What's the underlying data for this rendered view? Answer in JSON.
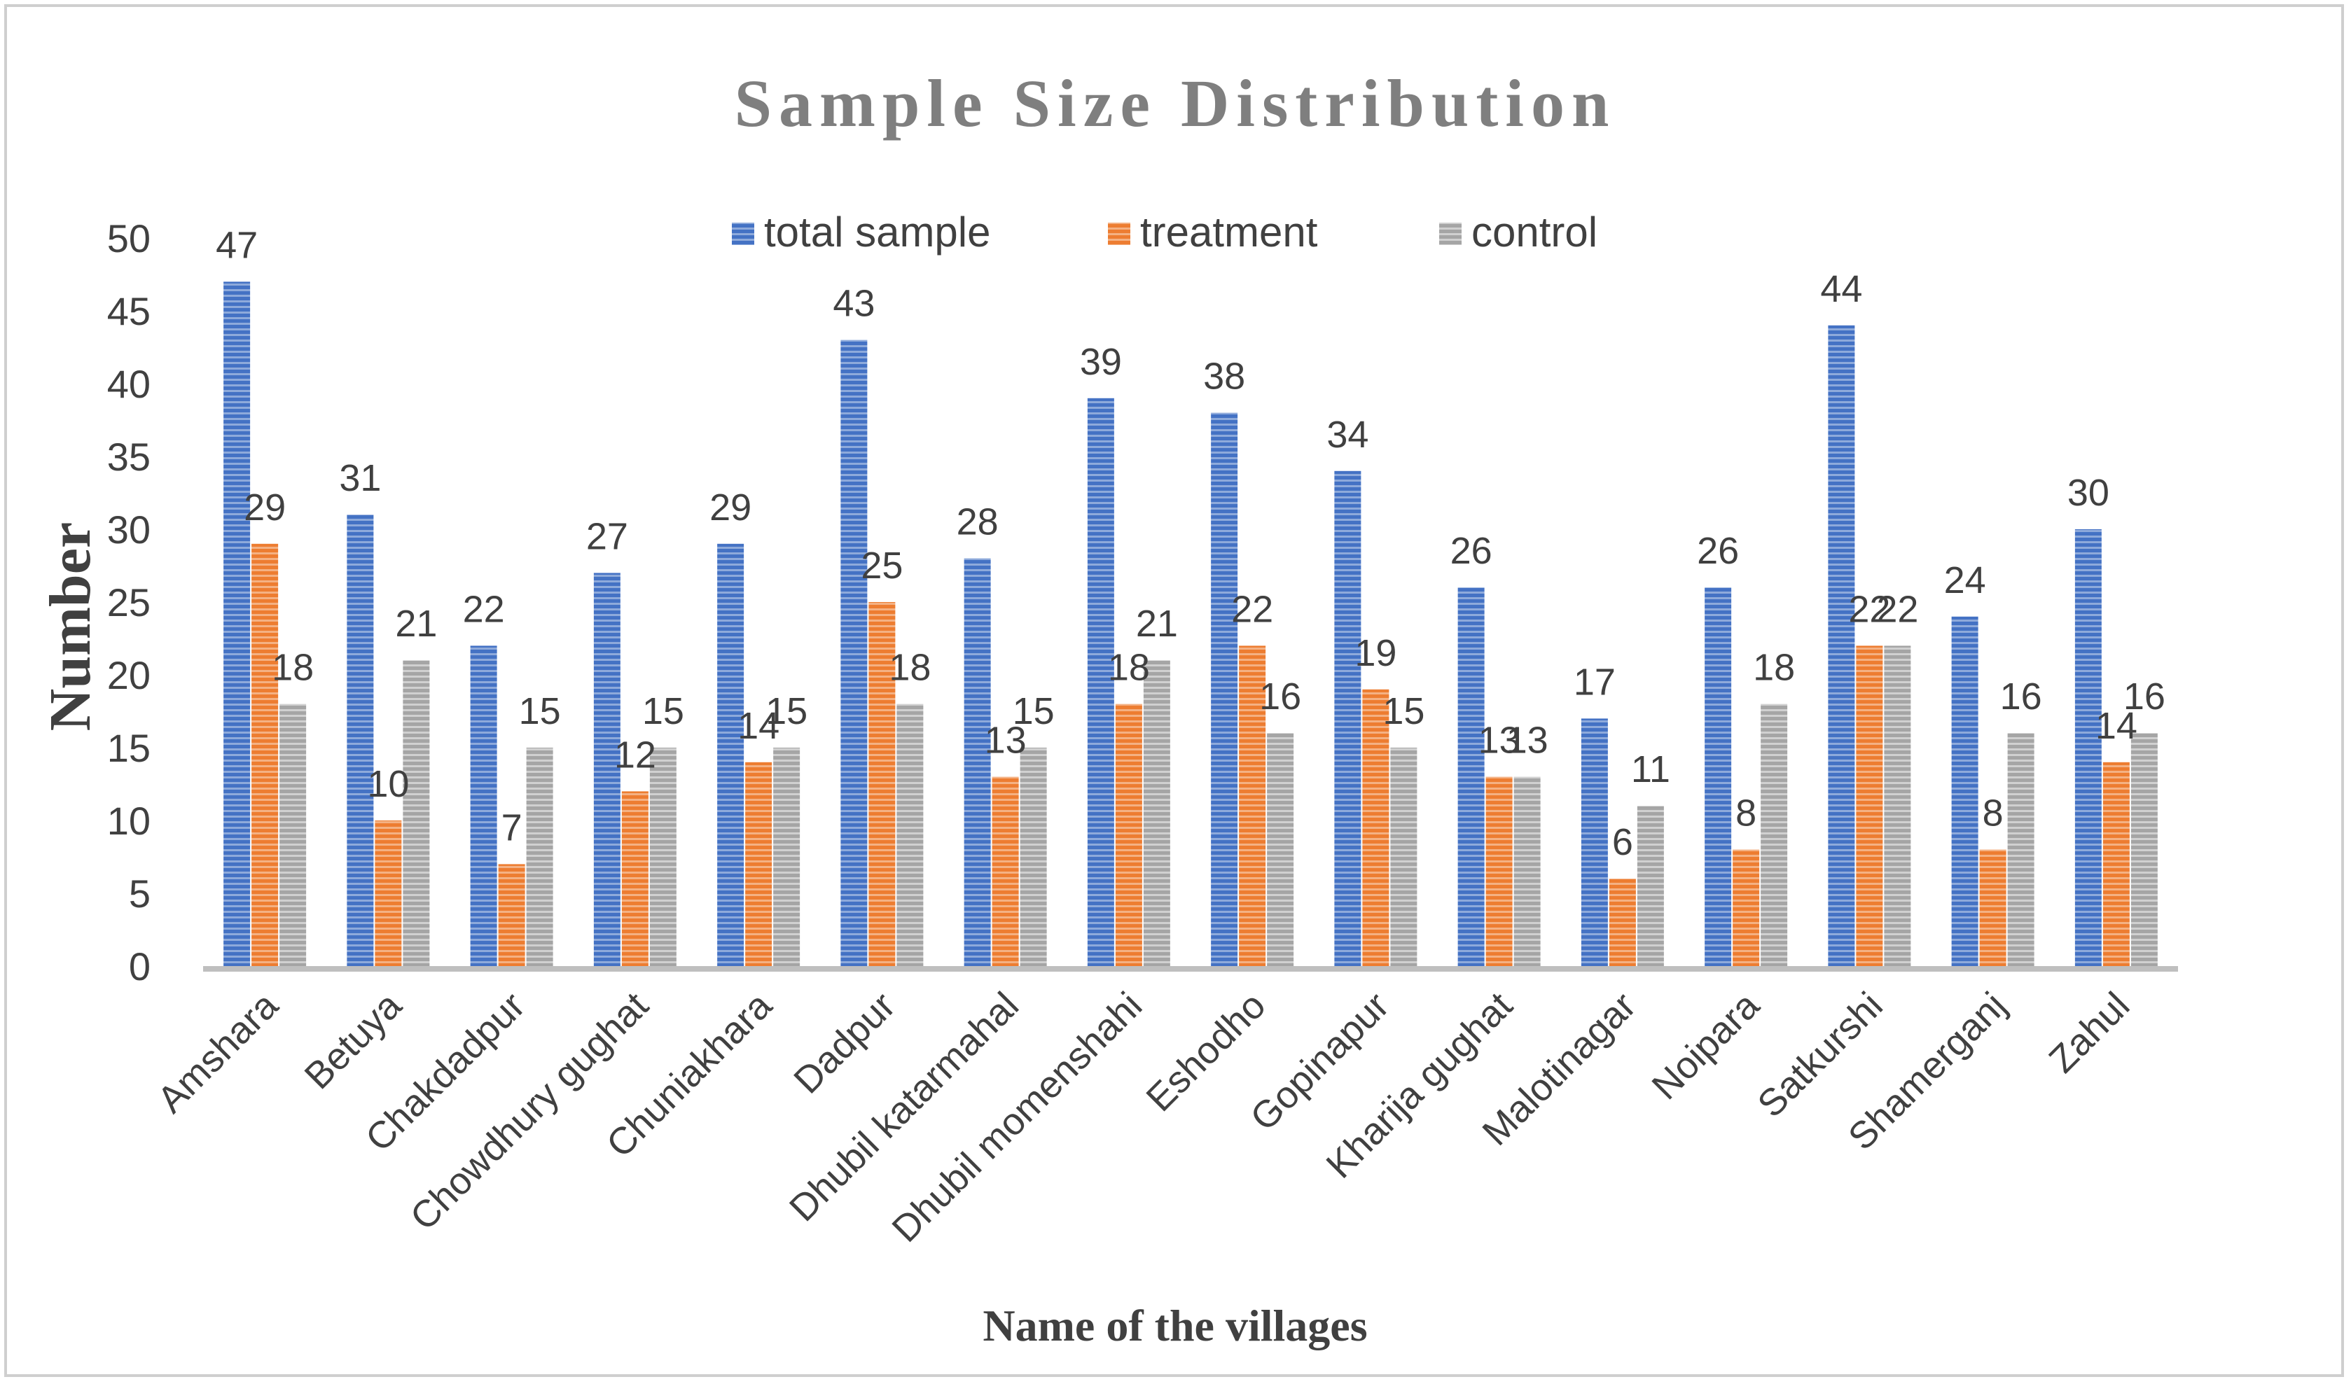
{
  "chart_data": {
    "type": "bar",
    "title": "Sample Size Distribution",
    "xlabel": "Name of the villages",
    "ylabel": "Number",
    "ylim": [
      0,
      50
    ],
    "yticks": [
      "0",
      "5",
      "10",
      "15",
      "20",
      "25",
      "30",
      "35",
      "40",
      "45",
      "50"
    ],
    "grid": false,
    "legend_position": "top-center",
    "categories": [
      "Amshara",
      "Betuya",
      "Chakdadpur",
      "Chowdhury gughat",
      "Chuniakhara",
      "Dadpur",
      "Dhubil katarmahal",
      "Dhubil momenshahi",
      "Eshodho",
      "Gopinapur",
      "Kharija gughat",
      "Malotinagar",
      "Noipara",
      "Satkurshi",
      "Shamerganj",
      "Zahul"
    ],
    "series": [
      {
        "name": "total sample",
        "color": "#4472c4",
        "values": [
          47,
          31,
          22,
          27,
          29,
          43,
          28,
          39,
          38,
          34,
          26,
          17,
          26,
          44,
          24,
          30
        ]
      },
      {
        "name": "treatment",
        "color": "#ed7d31",
        "values": [
          29,
          10,
          7,
          12,
          14,
          25,
          13,
          18,
          22,
          19,
          13,
          6,
          8,
          22,
          8,
          14
        ]
      },
      {
        "name": "control",
        "color": "#a5a5a5",
        "values": [
          18,
          21,
          15,
          15,
          15,
          18,
          15,
          21,
          16,
          15,
          13,
          11,
          18,
          22,
          16,
          16
        ]
      }
    ]
  }
}
